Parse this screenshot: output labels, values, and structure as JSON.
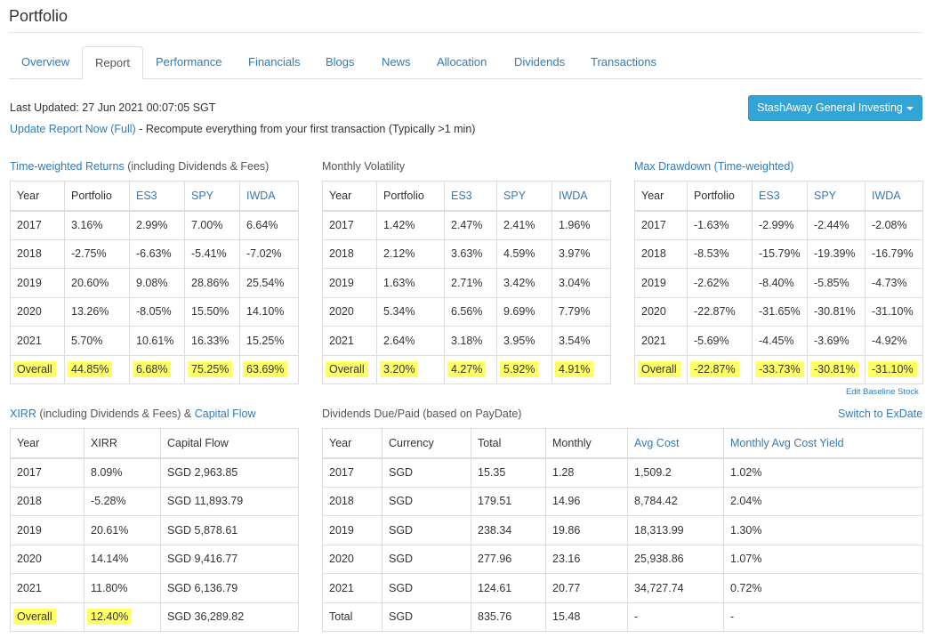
{
  "page": {
    "title": "Portfolio"
  },
  "tabs": [
    {
      "label": "Overview",
      "active": false
    },
    {
      "label": "Report",
      "active": true
    },
    {
      "label": "Performance",
      "active": false
    },
    {
      "label": "Financials",
      "active": false
    },
    {
      "label": "Blogs",
      "active": false
    },
    {
      "label": "News",
      "active": false
    },
    {
      "label": "Allocation",
      "active": false
    },
    {
      "label": "Dividends",
      "active": false
    },
    {
      "label": "Transactions",
      "active": false
    }
  ],
  "status": {
    "last_updated": "Last Updated: 27 Jun 2021 00:07:05 SGT",
    "update_link": "Update Report Now (Full)",
    "update_desc": " - Recompute everything from your first transaction (Typically >1 min)"
  },
  "account_selector": {
    "label": "StashAway General Investing"
  },
  "twr": {
    "title_link": "Time-weighted Returns",
    "title_rest": " (including Dividends & Fees)",
    "headers": [
      "Year",
      "Portfolio",
      "ES3",
      "SPY",
      "IWDA"
    ],
    "rows": [
      [
        "2017",
        "3.16%",
        "2.99%",
        "7.00%",
        "6.64%"
      ],
      [
        "2018",
        "-2.75%",
        "-6.63%",
        "-5.41%",
        "-7.02%"
      ],
      [
        "2019",
        "20.60%",
        "9.08%",
        "28.86%",
        "25.54%"
      ],
      [
        "2020",
        "13.26%",
        "-8.05%",
        "15.50%",
        "14.10%"
      ],
      [
        "2021",
        "5.70%",
        "10.61%",
        "16.33%",
        "15.25%"
      ]
    ],
    "overall": [
      "Overall",
      "44.85%",
      "6.68%",
      "75.25%",
      "63.69%"
    ]
  },
  "volatility": {
    "title": "Monthly Volatility",
    "headers": [
      "Year",
      "Portfolio",
      "ES3",
      "SPY",
      "IWDA"
    ],
    "rows": [
      [
        "2017",
        "1.42%",
        "2.47%",
        "2.41%",
        "1.96%"
      ],
      [
        "2018",
        "2.12%",
        "3.63%",
        "4.59%",
        "3.97%"
      ],
      [
        "2019",
        "1.63%",
        "2.71%",
        "3.42%",
        "3.04%"
      ],
      [
        "2020",
        "5.34%",
        "6.56%",
        "9.69%",
        "7.79%"
      ],
      [
        "2021",
        "2.64%",
        "3.18%",
        "3.95%",
        "3.54%"
      ]
    ],
    "overall": [
      "Overall",
      "3.20%",
      "4.27%",
      "5.92%",
      "4.91%"
    ]
  },
  "drawdown": {
    "title_link": "Max Drawdown (Time-weighted)",
    "headers": [
      "Year",
      "Portfolio",
      "ES3",
      "SPY",
      "IWDA"
    ],
    "rows": [
      [
        "2017",
        "-1.63%",
        "-2.99%",
        "-2.44%",
        "-2.08%"
      ],
      [
        "2018",
        "-8.53%",
        "-15.79%",
        "-19.39%",
        "-16.79%"
      ],
      [
        "2019",
        "-2.62%",
        "-8.40%",
        "-5.85%",
        "-4.73%"
      ],
      [
        "2020",
        "-22.87%",
        "-31.65%",
        "-30.81%",
        "-31.10%"
      ],
      [
        "2021",
        "-5.69%",
        "-4.45%",
        "-3.69%",
        "-4.92%"
      ]
    ],
    "overall": [
      "Overall",
      "-22.87%",
      "-33.73%",
      "-30.81%",
      "-31.10%"
    ],
    "edit_baseline": "Edit Baseline Stock"
  },
  "xirr": {
    "title_link": "XIRR",
    "title_mid": " (including Dividends & Fees) & ",
    "title_link2": "Capital Flow",
    "headers": [
      "Year",
      "XIRR",
      "Capital Flow"
    ],
    "rows": [
      [
        "2017",
        "8.09%",
        "SGD 2,963.85"
      ],
      [
        "2018",
        "-5.28%",
        "SGD 11,893.79"
      ],
      [
        "2019",
        "20.61%",
        "SGD 5,878.61"
      ],
      [
        "2020",
        "14.14%",
        "SGD 9,416.77"
      ],
      [
        "2021",
        "11.80%",
        "SGD 6,136.79"
      ]
    ],
    "overall": [
      "Overall",
      "12.40%",
      "SGD 36,289.82"
    ]
  },
  "dividends": {
    "title": "Dividends Due/Paid (based on PayDate)",
    "switch_link": "Switch to ExDate",
    "headers": [
      "Year",
      "Currency",
      "Total",
      "Monthly",
      "Avg Cost",
      "Monthly Avg Cost Yield"
    ],
    "rows": [
      [
        "2017",
        "SGD",
        "15.35",
        "1.28",
        "1,509.2",
        "1.02%"
      ],
      [
        "2018",
        "SGD",
        "179.51",
        "14.96",
        "8,784.42",
        "2.04%"
      ],
      [
        "2019",
        "SGD",
        "238.34",
        "19.86",
        "18,313.99",
        "1.30%"
      ],
      [
        "2020",
        "SGD",
        "277.96",
        "23.16",
        "25,938.86",
        "1.07%"
      ],
      [
        "2021",
        "SGD",
        "124.61",
        "20.77",
        "34,727.74",
        "0.72%"
      ]
    ],
    "total": [
      "Total",
      "SGD",
      "835.76",
      "15.48",
      "-",
      "-"
    ]
  }
}
